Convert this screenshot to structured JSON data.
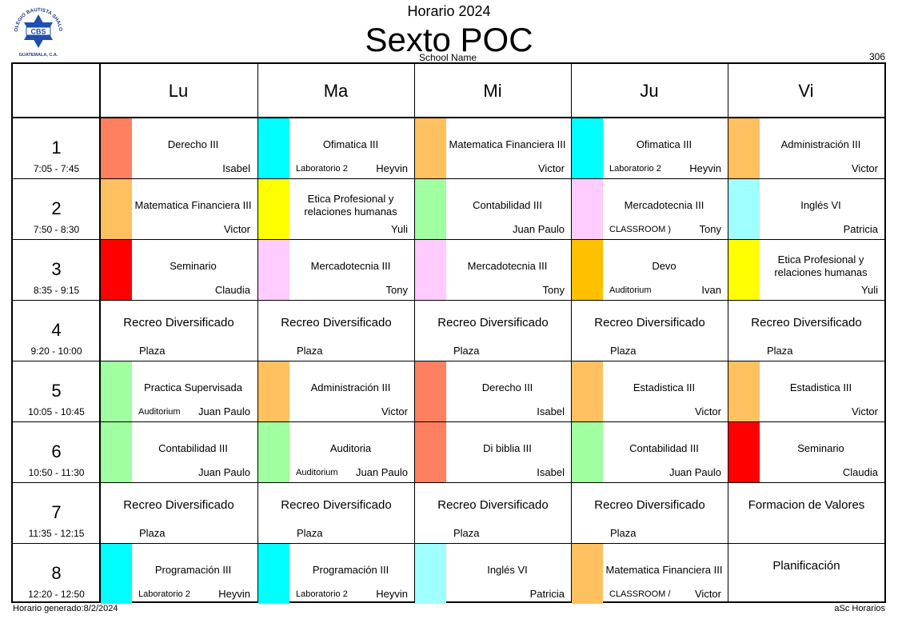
{
  "header": {
    "title_top": "Horario 2024",
    "title_main": "Sexto POC",
    "school_name": "School Name",
    "room_number": "306"
  },
  "logo": {
    "text_top": "COLEGIO BAUTISTA SHALOM",
    "initials": "CBS",
    "text_bottom": "GUATEMALA, C.A."
  },
  "days": [
    "Lu",
    "Ma",
    "Mi",
    "Ju",
    "Vi"
  ],
  "periods": [
    {
      "num": "1",
      "time": "7:05 - 7:45"
    },
    {
      "num": "2",
      "time": "7:50 - 8:30"
    },
    {
      "num": "3",
      "time": "8:35 - 9:15"
    },
    {
      "num": "4",
      "time": "9:20 - 10:00"
    },
    {
      "num": "5",
      "time": "10:05 - 10:45"
    },
    {
      "num": "6",
      "time": "10:50 - 11:30"
    },
    {
      "num": "7",
      "time": "11:35 - 12:15"
    },
    {
      "num": "8",
      "time": "12:20 - 12:50"
    }
  ],
  "schedule": [
    [
      {
        "subject": "Derecho III",
        "teacher": "Isabel",
        "room": "",
        "color": "#FF8060"
      },
      {
        "subject": "Ofimatica III",
        "teacher": "Heyvin",
        "room": "Laboratorio 2",
        "color": "#00FFFF"
      },
      {
        "subject": "Matematica Financiera III",
        "teacher": "Victor",
        "room": "",
        "color": "#FFC060"
      },
      {
        "subject": "Ofimatica III",
        "teacher": "Heyvin",
        "room": "Laboratorio 2",
        "color": "#00FFFF"
      },
      {
        "subject": "Administración III",
        "teacher": "Victor",
        "room": "",
        "color": "#FFC060"
      }
    ],
    [
      {
        "subject": "Matematica Financiera III",
        "teacher": "Victor",
        "room": "",
        "color": "#FFC060"
      },
      {
        "subject": "Etica Profesional y relaciones humanas",
        "teacher": "Yuli",
        "room": "",
        "color": "#FFFF00"
      },
      {
        "subject": "Contabilidad III",
        "teacher": "Juan Paulo",
        "room": "",
        "color": "#A0FFA0"
      },
      {
        "subject": "Mercadotecnia III",
        "teacher": "Tony",
        "room": "CLASSROOM )",
        "color": "#FFCCFF"
      },
      {
        "subject": "Inglés VI",
        "teacher": "Patricia",
        "room": "",
        "color": "#A0FFFF"
      }
    ],
    [
      {
        "subject": "Seminario",
        "teacher": "Claudia",
        "room": "",
        "color": "#FF0000"
      },
      {
        "subject": "Mercadotecnia III",
        "teacher": "Tony",
        "room": "",
        "color": "#FFCCFF"
      },
      {
        "subject": "Mercadotecnia III",
        "teacher": "Tony",
        "room": "",
        "color": "#FFCCFF"
      },
      {
        "subject": "Devo",
        "teacher": "Ivan",
        "room": "Auditorium",
        "color": "#FFC000"
      },
      {
        "subject": "Etica Profesional y relaciones humanas",
        "teacher": "Yuli",
        "room": "",
        "color": "#FFFF00"
      }
    ],
    [
      {
        "subject": "Recreo Diversificado",
        "teacher": "",
        "room": "Plaza",
        "color": ""
      },
      {
        "subject": "Recreo Diversificado",
        "teacher": "",
        "room": "Plaza",
        "color": ""
      },
      {
        "subject": "Recreo Diversificado",
        "teacher": "",
        "room": "Plaza",
        "color": ""
      },
      {
        "subject": "Recreo Diversificado",
        "teacher": "",
        "room": "Plaza",
        "color": ""
      },
      {
        "subject": "Recreo Diversificado",
        "teacher": "",
        "room": "Plaza",
        "color": ""
      }
    ],
    [
      {
        "subject": "Practica Supervisada",
        "teacher": "Juan Paulo",
        "room": "Auditorium",
        "color": "#A0FFA0"
      },
      {
        "subject": "Administración III",
        "teacher": "Victor",
        "room": "",
        "color": "#FFC060"
      },
      {
        "subject": "Derecho III",
        "teacher": "Isabel",
        "room": "",
        "color": "#FF8060"
      },
      {
        "subject": "Estadistica III",
        "teacher": "Victor",
        "room": "",
        "color": "#FFC060"
      },
      {
        "subject": "Estadistica III",
        "teacher": "Victor",
        "room": "",
        "color": "#FFC060"
      }
    ],
    [
      {
        "subject": "Contabilidad III",
        "teacher": "Juan Paulo",
        "room": "",
        "color": "#A0FFA0"
      },
      {
        "subject": "Auditoria",
        "teacher": "Juan Paulo",
        "room": "Auditorium",
        "color": "#A0FFA0"
      },
      {
        "subject": "Di biblia III",
        "teacher": "Isabel",
        "room": "",
        "color": "#FF8060"
      },
      {
        "subject": "Contabilidad III",
        "teacher": "Juan Paulo",
        "room": "",
        "color": "#A0FFA0"
      },
      {
        "subject": "Seminario",
        "teacher": "Claudia",
        "room": "",
        "color": "#FF0000"
      }
    ],
    [
      {
        "subject": "Recreo Diversificado",
        "teacher": "",
        "room": "Plaza",
        "color": ""
      },
      {
        "subject": "Recreo Diversificado",
        "teacher": "",
        "room": "Plaza",
        "color": ""
      },
      {
        "subject": "Recreo Diversificado",
        "teacher": "",
        "room": "Plaza",
        "color": ""
      },
      {
        "subject": "Recreo Diversificado",
        "teacher": "",
        "room": "Plaza",
        "color": ""
      },
      {
        "subject": "Formacion de Valores",
        "teacher": "",
        "room": "",
        "color": ""
      }
    ],
    [
      {
        "subject": "Programación III",
        "teacher": "Heyvin",
        "room": "Laboratorio 2",
        "color": "#00FFFF"
      },
      {
        "subject": "Programación III",
        "teacher": "Heyvin",
        "room": "Laboratorio 2",
        "color": "#00FFFF"
      },
      {
        "subject": "Inglés VI",
        "teacher": "Patricia",
        "room": "",
        "color": "#A0FFFF"
      },
      {
        "subject": "Matematica Financiera III",
        "teacher": "Victor",
        "room": "CLASSROOM /",
        "color": "#FFC060"
      },
      {
        "subject": "Planificación",
        "teacher": "",
        "room": "",
        "color": ""
      }
    ]
  ],
  "footer": {
    "generated": "Horario generado:8/2/2024",
    "credit": "aSc Horarios"
  }
}
